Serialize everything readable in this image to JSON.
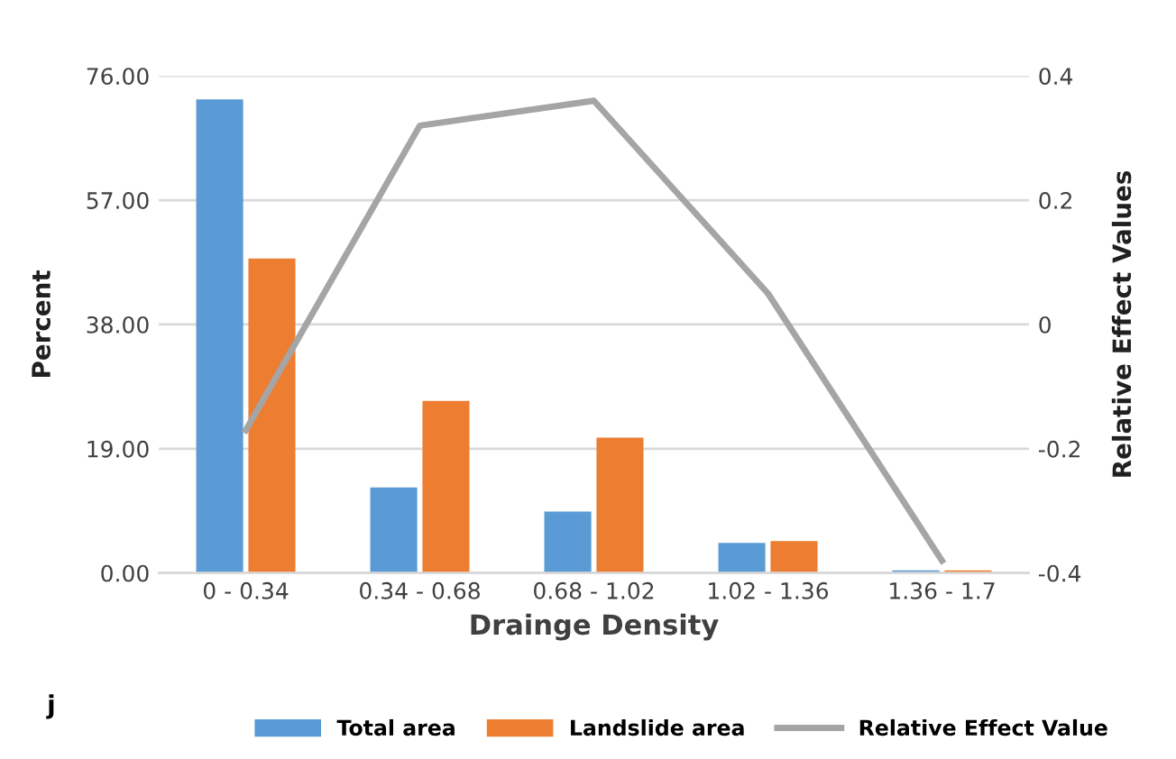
{
  "chart_data": {
    "type": "bar",
    "xlabel": "Drainge Density",
    "ylabel": "Percent",
    "y2label": "Relative Effect Values",
    "categories": [
      "0 - 0.34",
      "0.34 - 0.68",
      "0.68 - 1.02",
      "1.02 - 1.36",
      "1.36 - 1.7"
    ],
    "series": [
      {
        "name": "Total area",
        "color": "#5b9bd5",
        "values": [
          72.4,
          13.1,
          9.4,
          4.6,
          0.4
        ]
      },
      {
        "name": "Landslide area",
        "color": "#ed7d31",
        "values": [
          48.1,
          26.3,
          20.7,
          4.9,
          0.4
        ]
      },
      {
        "name": "Relative Effect Value",
        "type": "line",
        "axis": "y2",
        "color": "#a5a5a5",
        "values": [
          -0.17,
          0.32,
          0.36,
          0.05,
          -0.38
        ]
      }
    ],
    "ylim": [
      0,
      76
    ],
    "yticks": [
      {
        "value": 0,
        "label": "0.00"
      },
      {
        "value": 19,
        "label": "19.00"
      },
      {
        "value": 38,
        "label": "38.00"
      },
      {
        "value": 57,
        "label": "57.00"
      },
      {
        "value": 76,
        "label": "76.00"
      }
    ],
    "y2lim": [
      -0.4,
      0.4
    ],
    "y2ticks": [
      -0.4,
      -0.2,
      {
        "value": 0,
        "label": "0"
      },
      0.2,
      0.4
    ],
    "grid": "y",
    "legend": "bottom",
    "annotations": [
      "j"
    ]
  }
}
